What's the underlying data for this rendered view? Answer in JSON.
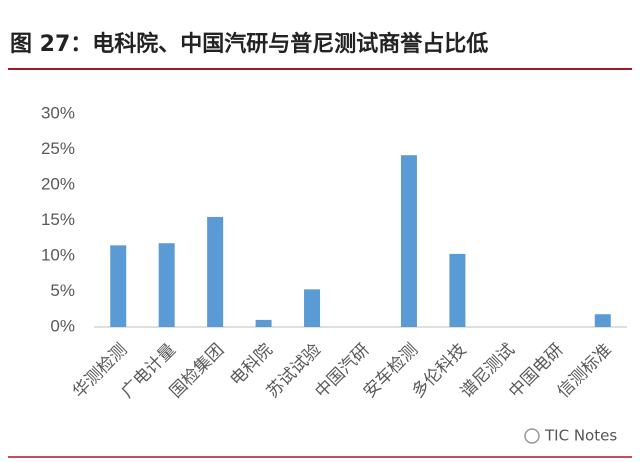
{
  "chart_data": {
    "type": "bar",
    "title": "图 27：电科院、中国汽研与普尼测试商誉占比低",
    "categories": [
      "华测检测",
      "广电计量",
      "国检集团",
      "电科院",
      "苏试试验",
      "中国汽研",
      "安车检测",
      "多伦科技",
      "谱尼测试",
      "中国电研",
      "信测标准"
    ],
    "values": [
      11.5,
      11.8,
      15.5,
      1.0,
      5.3,
      0,
      24.2,
      10.3,
      0,
      0,
      1.8
    ],
    "color": "#5b9bd5",
    "ylim": [
      0,
      30
    ],
    "yticks": [
      {
        "value": 0,
        "label": "0%"
      },
      {
        "value": 5,
        "label": "5%"
      },
      {
        "value": 10,
        "label": "10%"
      },
      {
        "value": 15,
        "label": "15%"
      },
      {
        "value": 20,
        "label": "20%"
      },
      {
        "value": 25,
        "label": "25%"
      },
      {
        "value": 30,
        "label": "30%"
      }
    ],
    "grid": false,
    "watermark": "TIC Notes"
  }
}
